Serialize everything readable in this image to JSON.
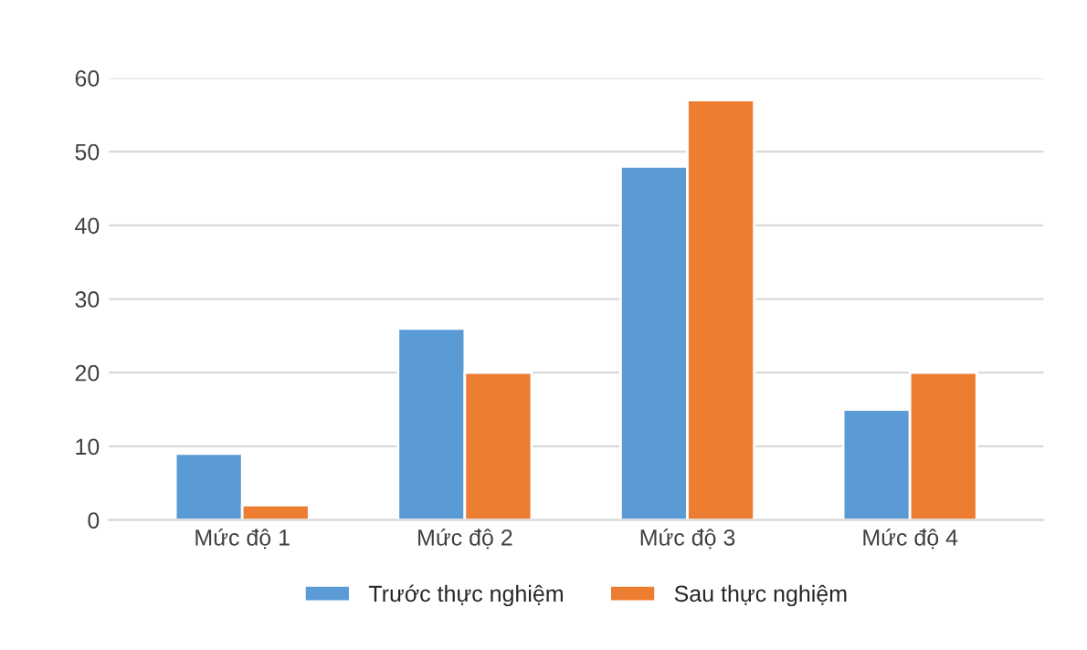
{
  "chart_data": {
    "type": "bar",
    "categories": [
      "Mức độ 1",
      "Mức độ 2",
      "Mức độ 3",
      "Mức độ 4"
    ],
    "series": [
      {
        "name": "Trước thực nghiệm",
        "color": "#5b9bd5",
        "values": [
          9,
          26,
          48,
          15
        ]
      },
      {
        "name": "Sau thực nghiệm",
        "color": "#ed7d31",
        "values": [
          2,
          20,
          57,
          20
        ]
      }
    ],
    "ylim": [
      0,
      60
    ],
    "yticks": [
      0,
      10,
      20,
      30,
      40,
      50,
      60
    ],
    "grid": "y",
    "legend": "bottom"
  }
}
